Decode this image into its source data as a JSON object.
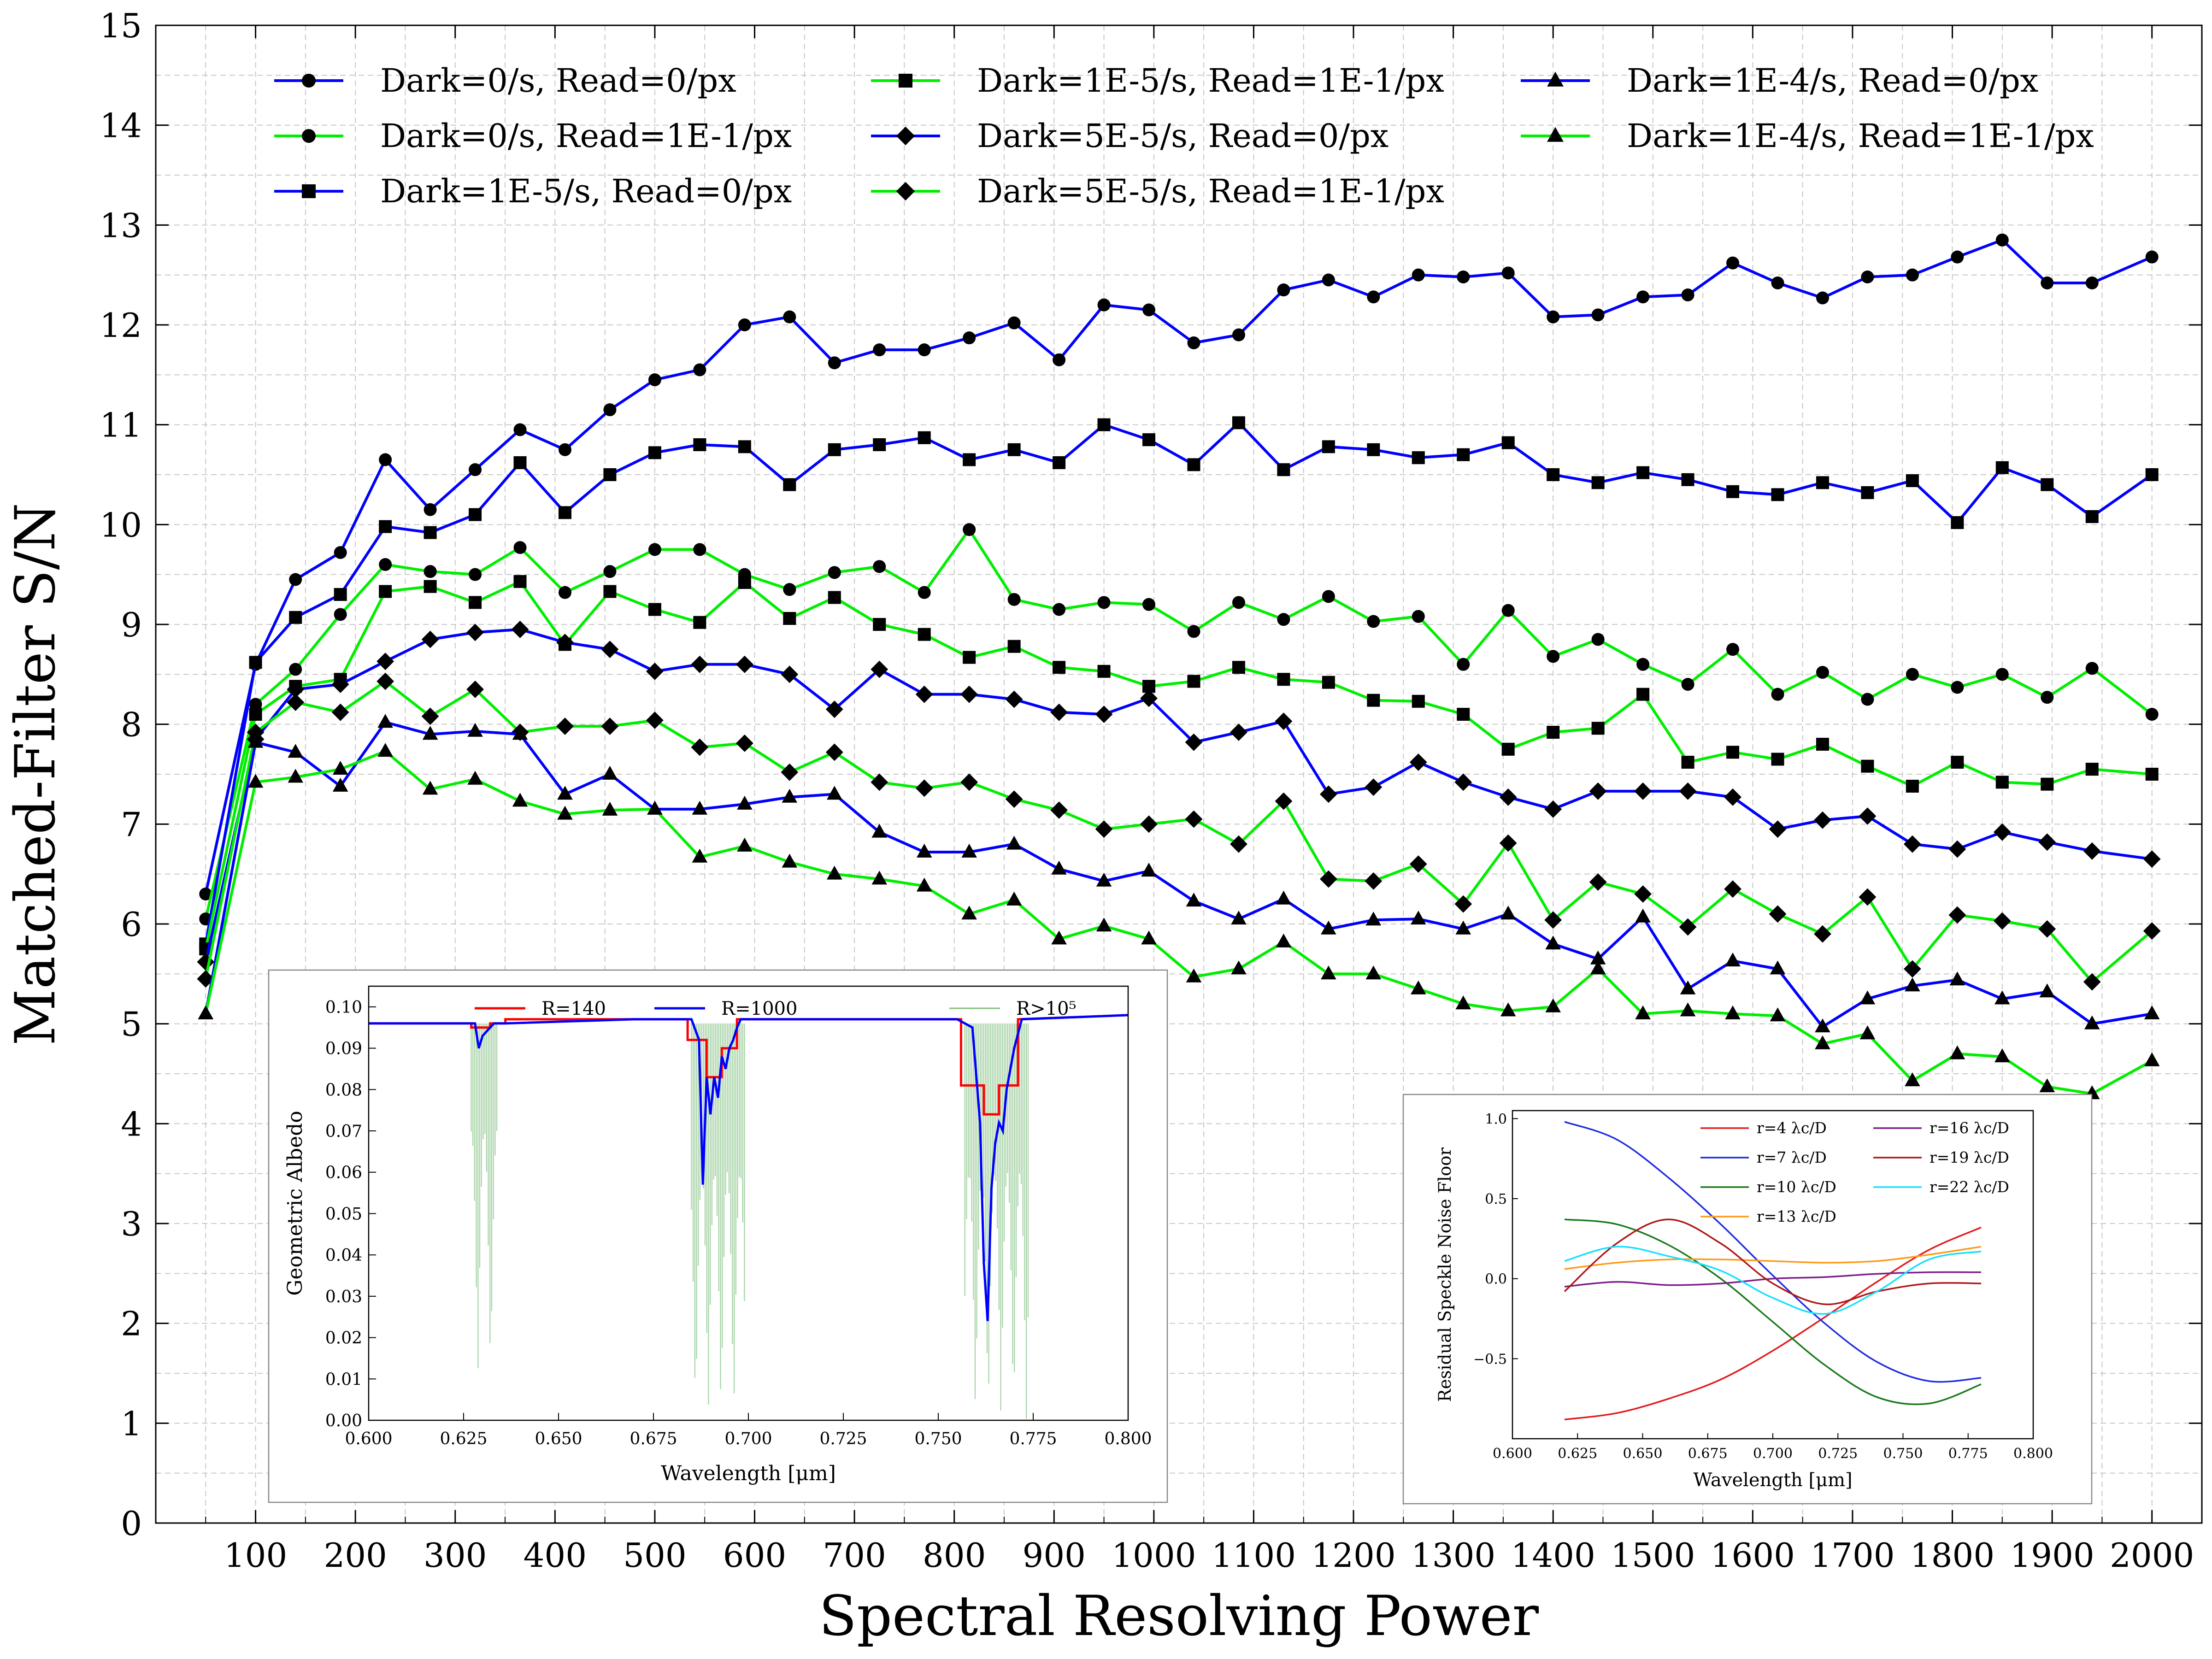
{
  "chart_data": [
    {
      "type": "line",
      "xlabel": "Spectral Resolving Power",
      "ylabel": "Matched-Filter S/N",
      "xlim": [
        0,
        2050
      ],
      "ylim": [
        0,
        15
      ],
      "xticks": [
        100,
        200,
        300,
        400,
        500,
        600,
        700,
        800,
        900,
        1000,
        1100,
        1200,
        1300,
        1400,
        1500,
        1600,
        1700,
        1800,
        1900,
        2000
      ],
      "yticks": [
        0,
        1,
        2,
        3,
        4,
        5,
        6,
        7,
        8,
        9,
        10,
        11,
        12,
        13,
        14,
        15
      ],
      "grid": true,
      "legend": "top, three columns",
      "x": [
        50,
        100,
        140,
        185,
        230,
        275,
        320,
        365,
        410,
        455,
        500,
        545,
        590,
        635,
        680,
        725,
        770,
        815,
        860,
        905,
        950,
        995,
        1040,
        1085,
        1130,
        1175,
        1220,
        1265,
        1310,
        1355,
        1400,
        1445,
        1490,
        1535,
        1580,
        1625,
        1670,
        1715,
        1760,
        1805,
        1850,
        1895,
        1940,
        2000
      ],
      "series": [
        {
          "name": "Dark=0/s, Read=0/px",
          "color": "#0000ff",
          "marker": "circle",
          "values": [
            6.3,
            8.6,
            9.45,
            9.72,
            10.65,
            10.15,
            10.55,
            10.95,
            10.75,
            11.15,
            11.45,
            11.55,
            12.0,
            12.08,
            11.62,
            11.75,
            11.75,
            11.87,
            12.02,
            11.65,
            12.2,
            12.15,
            11.82,
            11.9,
            12.35,
            12.45,
            12.28,
            12.5,
            12.48,
            12.52,
            12.08,
            12.1,
            12.28,
            12.3,
            12.62,
            12.42,
            12.27,
            12.48,
            12.5,
            12.68,
            12.85,
            12.42,
            12.42,
            12.68
          ]
        },
        {
          "name": "Dark=0/s, Read=1E-1/px",
          "color": "#00ee00",
          "marker": "circle",
          "values": [
            6.05,
            8.2,
            8.55,
            9.1,
            9.6,
            9.53,
            9.5,
            9.77,
            9.32,
            9.53,
            9.75,
            9.75,
            9.5,
            9.35,
            9.52,
            9.58,
            9.32,
            9.95,
            9.25,
            9.15,
            9.22,
            9.2,
            8.93,
            9.22,
            9.05,
            9.28,
            9.03,
            9.08,
            8.6,
            9.14,
            8.68,
            8.85,
            8.6,
            8.4,
            8.75,
            8.3,
            8.52,
            8.25,
            8.5,
            8.37,
            8.5,
            8.27,
            8.56,
            8.1
          ]
        },
        {
          "name": "Dark=1E-5/s, Read=0/px",
          "color": "#0000ff",
          "marker": "square",
          "values": [
            5.8,
            8.62,
            9.07,
            9.3,
            9.98,
            9.92,
            10.1,
            10.62,
            10.12,
            10.5,
            10.72,
            10.8,
            10.78,
            10.4,
            10.75,
            10.8,
            10.87,
            10.65,
            10.75,
            10.62,
            11.0,
            10.85,
            10.6,
            11.02,
            10.55,
            10.78,
            10.75,
            10.67,
            10.7,
            10.82,
            10.5,
            10.42,
            10.52,
            10.45,
            10.33,
            10.3,
            10.42,
            10.32,
            10.44,
            10.02,
            10.57,
            10.4,
            10.08,
            10.5
          ]
        },
        {
          "name": "Dark=1E-5/s, Read=1E-1/px",
          "color": "#00ee00",
          "marker": "square",
          "values": [
            5.75,
            8.1,
            8.38,
            8.45,
            9.33,
            9.38,
            9.22,
            9.43,
            8.8,
            9.33,
            9.15,
            9.02,
            9.42,
            9.06,
            9.27,
            9.0,
            8.9,
            8.67,
            8.78,
            8.57,
            8.53,
            8.38,
            8.43,
            8.57,
            8.45,
            8.42,
            8.24,
            8.23,
            8.1,
            7.75,
            7.92,
            7.96,
            8.3,
            7.62,
            7.72,
            7.65,
            7.8,
            7.58,
            7.38,
            7.62,
            7.42,
            7.4,
            7.55,
            7.5
          ]
        },
        {
          "name": "Dark=5E-5/s, Read=0/px",
          "color": "#0000ff",
          "marker": "diamond",
          "values": [
            5.62,
            7.85,
            8.35,
            8.4,
            8.63,
            8.85,
            8.92,
            8.95,
            8.82,
            8.75,
            8.53,
            8.6,
            8.6,
            8.5,
            8.15,
            8.55,
            8.3,
            8.3,
            8.25,
            8.12,
            8.1,
            8.26,
            7.82,
            7.92,
            8.03,
            7.3,
            7.37,
            7.62,
            7.42,
            7.27,
            7.15,
            7.33,
            7.33,
            7.33,
            7.27,
            6.95,
            7.04,
            7.08,
            6.8,
            6.75,
            6.92,
            6.82,
            6.73,
            6.65
          ]
        },
        {
          "name": "Dark=5E-5/s, Read=1E-1/px",
          "color": "#00ee00",
          "marker": "diamond",
          "values": [
            5.45,
            7.92,
            8.22,
            8.12,
            8.43,
            8.08,
            8.35,
            7.92,
            7.98,
            7.98,
            8.04,
            7.77,
            7.81,
            7.52,
            7.72,
            7.42,
            7.36,
            7.42,
            7.25,
            7.14,
            6.95,
            7.0,
            7.05,
            6.8,
            7.23,
            6.45,
            6.43,
            6.6,
            6.2,
            6.81,
            6.04,
            6.42,
            6.3,
            5.97,
            6.35,
            6.1,
            5.9,
            6.27,
            5.55,
            6.09,
            6.03,
            5.95,
            5.42,
            5.93
          ]
        },
        {
          "name": "Dark=1E-4/s, Read=0/px",
          "color": "#0000ff",
          "marker": "triangle",
          "values": [
            5.1,
            7.82,
            7.72,
            7.38,
            8.02,
            7.9,
            7.93,
            7.9,
            7.3,
            7.5,
            7.15,
            7.15,
            7.2,
            7.27,
            7.3,
            6.92,
            6.72,
            6.72,
            6.8,
            6.55,
            6.43,
            6.53,
            6.23,
            6.05,
            6.25,
            5.95,
            6.04,
            6.05,
            5.95,
            6.1,
            5.8,
            5.65,
            6.07,
            5.35,
            5.63,
            5.55,
            4.97,
            5.25,
            5.38,
            5.44,
            5.25,
            5.32,
            5.0,
            5.1
          ]
        },
        {
          "name": "Dark=1E-4/s, Read=1E-1/px",
          "color": "#00ee00",
          "marker": "triangle",
          "values": [
            5.1,
            7.42,
            7.47,
            7.55,
            7.73,
            7.35,
            7.45,
            7.23,
            7.1,
            7.14,
            7.15,
            6.67,
            6.78,
            6.62,
            6.5,
            6.45,
            6.38,
            6.1,
            6.24,
            5.85,
            5.98,
            5.85,
            5.47,
            5.55,
            5.82,
            5.5,
            5.5,
            5.35,
            5.2,
            5.13,
            5.17,
            5.55,
            5.1,
            5.13,
            5.1,
            5.08,
            4.8,
            4.9,
            4.43,
            4.7,
            4.67,
            4.37,
            4.3,
            4.63
          ]
        }
      ]
    },
    {
      "type": "line",
      "xlabel": "Wavelength [μm]",
      "ylabel": "Geometric Albedo",
      "xlim": [
        0.6,
        0.8
      ],
      "ylim": [
        0.0,
        0.105
      ],
      "xticks": [
        "0.600",
        "0.625",
        "0.650",
        "0.675",
        "0.700",
        "0.725",
        "0.750",
        "0.775",
        "0.800"
      ],
      "yticks": [
        "0.00",
        "0.01",
        "0.02",
        "0.03",
        "0.04",
        "0.05",
        "0.06",
        "0.07",
        "0.08",
        "0.09",
        "0.10"
      ],
      "series": [
        {
          "name": "R=140",
          "color": "#ff0000",
          "x": [
            0.6,
            0.627,
            0.627,
            0.632,
            0.632,
            0.636,
            0.636,
            0.684,
            0.684,
            0.689,
            0.689,
            0.693,
            0.693,
            0.697,
            0.697,
            0.756,
            0.756,
            0.762,
            0.762,
            0.766,
            0.766,
            0.771,
            0.771,
            0.8
          ],
          "y": [
            0.096,
            0.096,
            0.095,
            0.095,
            0.096,
            0.096,
            0.097,
            0.097,
            0.092,
            0.092,
            0.083,
            0.083,
            0.09,
            0.09,
            0.097,
            0.097,
            0.081,
            0.081,
            0.074,
            0.074,
            0.081,
            0.081,
            0.097,
            0.098
          ]
        },
        {
          "name": "R=1000",
          "color": "#0000ff",
          "x": [
            0.6,
            0.625,
            0.628,
            0.629,
            0.63,
            0.631,
            0.632,
            0.633,
            0.636,
            0.67,
            0.685,
            0.687,
            0.688,
            0.689,
            0.69,
            0.691,
            0.692,
            0.693,
            0.694,
            0.695,
            0.696,
            0.697,
            0.698,
            0.7,
            0.755,
            0.759,
            0.761,
            0.762,
            0.763,
            0.764,
            0.765,
            0.766,
            0.767,
            0.768,
            0.77,
            0.772,
            0.8
          ],
          "y": [
            0.096,
            0.096,
            0.096,
            0.09,
            0.093,
            0.094,
            0.095,
            0.096,
            0.096,
            0.097,
            0.097,
            0.092,
            0.057,
            0.083,
            0.074,
            0.083,
            0.078,
            0.088,
            0.085,
            0.09,
            0.092,
            0.095,
            0.097,
            0.097,
            0.097,
            0.095,
            0.072,
            0.038,
            0.024,
            0.056,
            0.067,
            0.072,
            0.07,
            0.08,
            0.09,
            0.097,
            0.098
          ]
        },
        {
          "name": "R>10⁵",
          "color": "#7fbf7f",
          "x": [],
          "y": []
        }
      ],
      "legend_labels": [
        "R=140",
        "R=1000"
      ]
    },
    {
      "type": "line",
      "xlabel": "Wavelength [μm]",
      "ylabel": "Residual Speckle Noise Floor",
      "xlim": [
        0.6,
        0.8
      ],
      "ylim": [
        -1.0,
        1.05
      ],
      "xticks": [
        "0.600",
        "0.625",
        "0.650",
        "0.675",
        "0.700",
        "0.725",
        "0.750",
        "0.775",
        "0.800"
      ],
      "yticks": [
        "−0.5",
        "0.0",
        "0.5",
        "1.0"
      ],
      "x": [
        0.62,
        0.64,
        0.66,
        0.68,
        0.7,
        0.72,
        0.74,
        0.76,
        0.78
      ],
      "series": [
        {
          "name": "r=4 λc/D",
          "color": "#e41a1c",
          "values": [
            -0.88,
            -0.84,
            -0.75,
            -0.63,
            -0.45,
            -0.24,
            -0.02,
            0.18,
            0.32
          ]
        },
        {
          "name": "r=7 λc/D",
          "color": "#1f2de0",
          "values": [
            0.98,
            0.87,
            0.63,
            0.34,
            0.02,
            -0.28,
            -0.52,
            -0.64,
            -0.62
          ]
        },
        {
          "name": "r=10 λc/D",
          "color": "#1b7a1b",
          "values": [
            0.37,
            0.34,
            0.21,
            0.0,
            -0.27,
            -0.54,
            -0.74,
            -0.78,
            -0.66
          ]
        },
        {
          "name": "r=13 λc/D",
          "color": "#ff9a1a",
          "values": [
            0.06,
            0.1,
            0.12,
            0.12,
            0.11,
            0.1,
            0.11,
            0.15,
            0.2
          ]
        },
        {
          "name": "r=16 λc/D",
          "color": "#7b1f8a",
          "values": [
            -0.05,
            -0.02,
            -0.04,
            -0.03,
            0.0,
            0.01,
            0.03,
            0.04,
            0.04
          ]
        },
        {
          "name": "r=19 λc/D",
          "color": "#b01717",
          "values": [
            -0.08,
            0.22,
            0.37,
            0.22,
            -0.03,
            -0.16,
            -0.08,
            -0.03,
            -0.03
          ]
        },
        {
          "name": "r=22 λc/D",
          "color": "#14e0ff",
          "values": [
            0.11,
            0.2,
            0.14,
            0.05,
            -0.12,
            -0.22,
            -0.08,
            0.12,
            0.17
          ]
        }
      ]
    }
  ]
}
